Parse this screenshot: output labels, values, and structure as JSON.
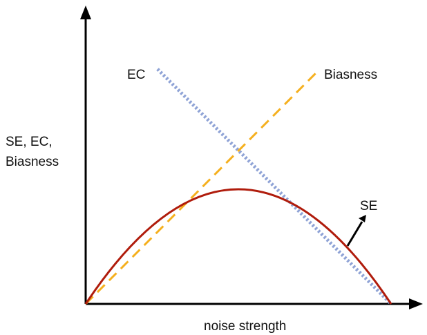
{
  "axes": {
    "x_label": "noise strength",
    "y_label_lines": [
      "SE, EC,",
      "Biasness"
    ]
  },
  "curves": {
    "ec": {
      "label": "EC",
      "color": "#8fa3d6",
      "style": "dotted"
    },
    "biasness": {
      "label": "Biasness",
      "color": "#f5b01f",
      "style": "dashed"
    },
    "se": {
      "label": "SE",
      "color": "#b01c0c",
      "style": "solid"
    }
  },
  "axis_color": "#000000"
}
